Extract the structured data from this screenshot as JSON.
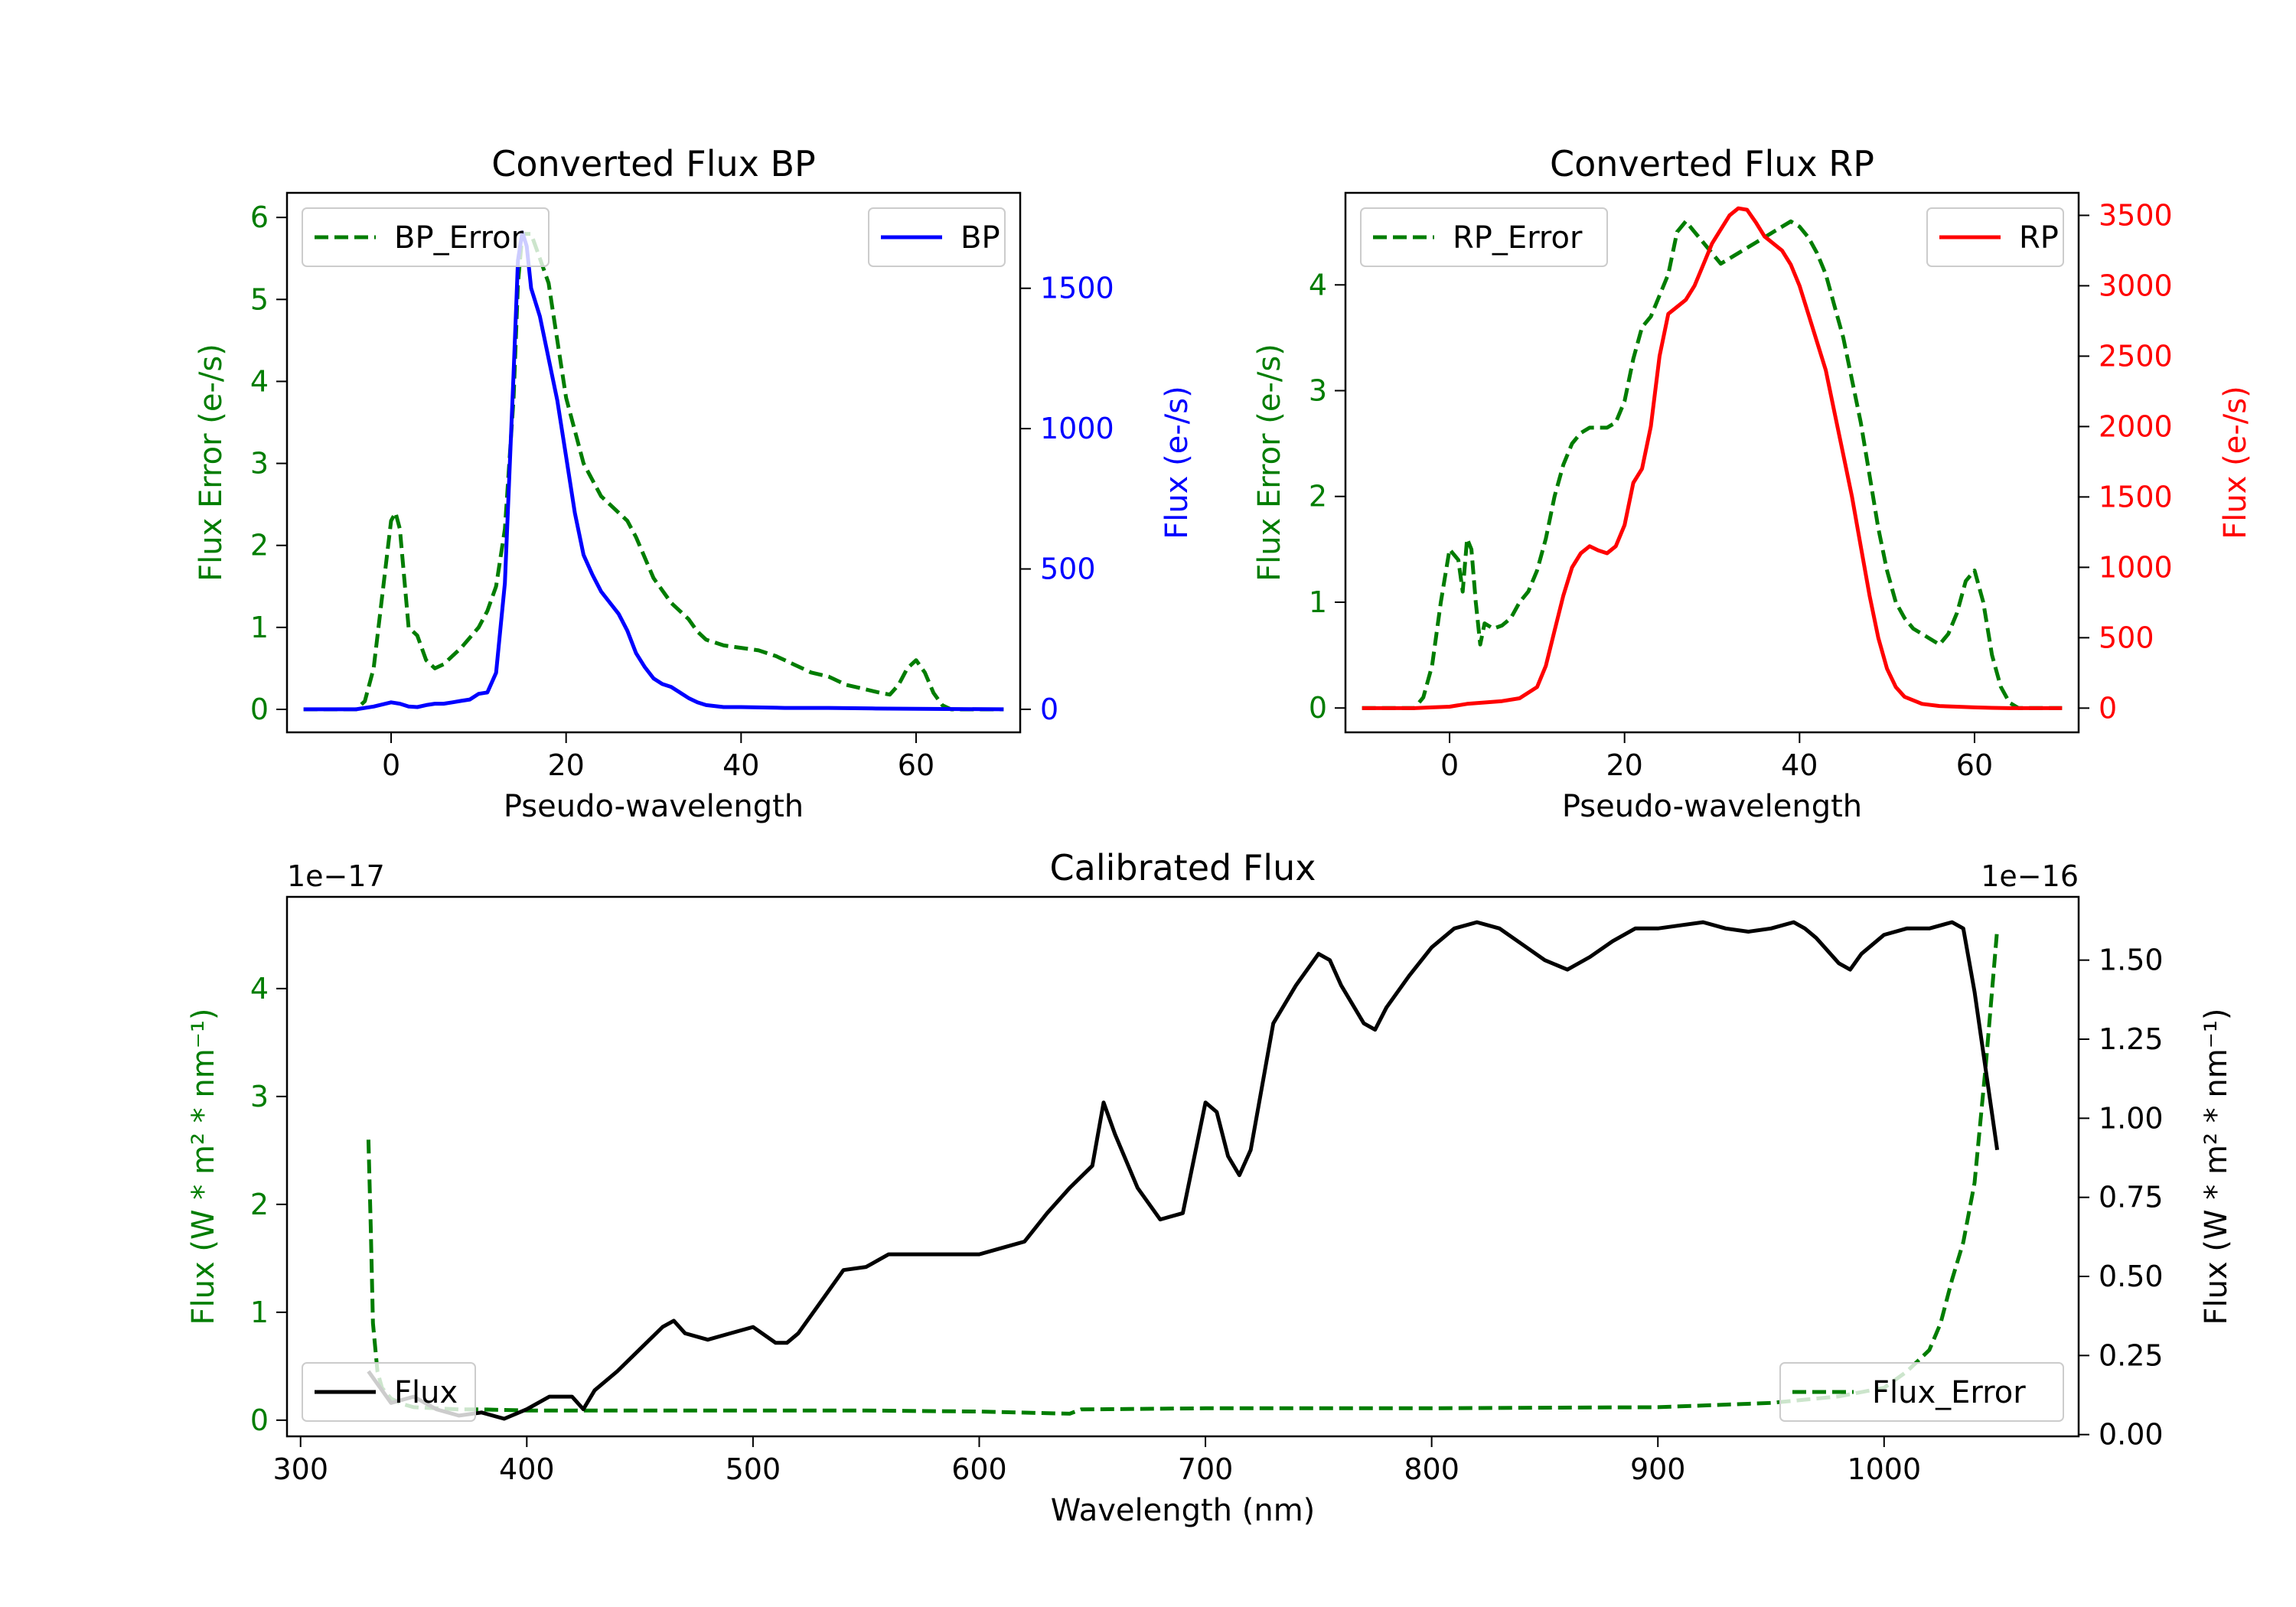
{
  "colors": {
    "green": "#007d00",
    "blue": "#0000ff",
    "red": "#ff0000",
    "black": "#000000"
  },
  "chart_data": [
    {
      "type": "line",
      "title": "Converted Flux BP",
      "xlabel": "Pseudo-wavelength",
      "ylabel_left": "Flux Error (e-/s)",
      "ylabel_right": "Flux (e-/s)",
      "xlim": [
        -11.9,
        71.9
      ],
      "ylim_left": [
        -0.28,
        6.3
      ],
      "ylim_right": [
        -82,
        1840
      ],
      "xticks": [
        0,
        20,
        40,
        60
      ],
      "yticks_left": [
        0,
        1,
        2,
        3,
        4,
        5,
        6
      ],
      "yticks_right": [
        0,
        500,
        1000,
        1500
      ],
      "legend_left": "BP_Error",
      "legend_right": "BP",
      "series": [
        {
          "name": "BP_Error",
          "axis": "left",
          "color": "#007d00",
          "dash": true,
          "x": [
            -10,
            -4,
            -3,
            -2,
            -1,
            0,
            0.5,
            1,
            2,
            3,
            4,
            5,
            6,
            8,
            10,
            11,
            12,
            13,
            14,
            14.5,
            15,
            16,
            17,
            18,
            19,
            20,
            22,
            24,
            26,
            27,
            28,
            30,
            32,
            34,
            35,
            36,
            38,
            40,
            42,
            44,
            46,
            48,
            50,
            52,
            54,
            56,
            57,
            58,
            59,
            60,
            61,
            62,
            63,
            64,
            65,
            66,
            70
          ],
          "values": [
            0,
            0,
            0.1,
            0.5,
            1.4,
            2.3,
            2.4,
            2.2,
            1.0,
            0.9,
            0.6,
            0.5,
            0.55,
            0.75,
            1.0,
            1.2,
            1.5,
            2.2,
            3.8,
            5.2,
            5.8,
            5.8,
            5.5,
            5.2,
            4.5,
            3.8,
            3.0,
            2.6,
            2.4,
            2.3,
            2.1,
            1.6,
            1.3,
            1.1,
            0.95,
            0.85,
            0.78,
            0.75,
            0.72,
            0.65,
            0.55,
            0.45,
            0.4,
            0.3,
            0.25,
            0.2,
            0.18,
            0.3,
            0.5,
            0.6,
            0.45,
            0.2,
            0.05,
            0,
            0,
            0,
            0
          ]
        },
        {
          "name": "BP",
          "axis": "right",
          "color": "#0000ff",
          "dash": false,
          "x": [
            -10,
            -4,
            -2,
            0,
            1,
            2,
            3,
            4,
            5,
            6,
            7,
            8,
            9,
            10,
            11,
            12,
            13,
            14,
            14.5,
            15,
            15.5,
            16,
            17,
            18,
            19,
            20,
            21,
            22,
            23,
            24,
            25,
            26,
            27,
            28,
            29,
            30,
            31,
            32,
            33,
            34,
            35,
            36,
            38,
            40,
            45,
            50,
            55,
            60,
            65,
            70
          ],
          "values": [
            0,
            0,
            10,
            25,
            20,
            10,
            8,
            15,
            20,
            20,
            25,
            30,
            35,
            55,
            60,
            130,
            450,
            1200,
            1600,
            1700,
            1650,
            1500,
            1400,
            1250,
            1100,
            900,
            700,
            550,
            480,
            420,
            380,
            340,
            280,
            200,
            150,
            110,
            90,
            80,
            60,
            40,
            25,
            15,
            8,
            8,
            5,
            5,
            3,
            2,
            1,
            0
          ]
        }
      ]
    },
    {
      "type": "line",
      "title": "Converted Flux RP",
      "xlabel": "Pseudo-wavelength",
      "ylabel_left": "Flux Error (e-/s)",
      "ylabel_right": "Flux (e-/s)",
      "xlim": [
        -11.9,
        71.9
      ],
      "ylim_left": [
        -0.23,
        4.87
      ],
      "ylim_right": [
        -172,
        3660
      ],
      "xticks": [
        0,
        20,
        40,
        60
      ],
      "yticks_left": [
        0,
        1,
        2,
        3,
        4
      ],
      "yticks_right": [
        0,
        500,
        1000,
        1500,
        2000,
        2500,
        3000,
        3500
      ],
      "legend_left": "RP_Error",
      "legend_right": "RP",
      "series": [
        {
          "name": "RP_Error",
          "axis": "left",
          "color": "#007d00",
          "dash": true,
          "x": [
            -10,
            -4,
            -3,
            -2,
            -1,
            0,
            1,
            1.5,
            2,
            2.5,
            3,
            3.5,
            4,
            5,
            6,
            7,
            8,
            9,
            10,
            11,
            12,
            13,
            14,
            15,
            16,
            17,
            18,
            19,
            20,
            21,
            22,
            23,
            24,
            25,
            26,
            27,
            28,
            29,
            30,
            31,
            32,
            33,
            34,
            35,
            36,
            37,
            38,
            39,
            40,
            41,
            42,
            43,
            44,
            45,
            46,
            47,
            48,
            49,
            50,
            51,
            52,
            53,
            54,
            55,
            56,
            57,
            58,
            59,
            60,
            61,
            62,
            63,
            64,
            65,
            70
          ],
          "values": [
            0,
            0,
            0.1,
            0.4,
            1.0,
            1.5,
            1.4,
            1.1,
            1.6,
            1.5,
            1.0,
            0.6,
            0.8,
            0.75,
            0.78,
            0.85,
            1.0,
            1.1,
            1.3,
            1.6,
            2.0,
            2.3,
            2.5,
            2.6,
            2.65,
            2.65,
            2.65,
            2.7,
            2.9,
            3.3,
            3.6,
            3.7,
            3.9,
            4.1,
            4.5,
            4.6,
            4.5,
            4.4,
            4.3,
            4.2,
            4.25,
            4.3,
            4.35,
            4.4,
            4.45,
            4.5,
            4.55,
            4.6,
            4.55,
            4.45,
            4.3,
            4.1,
            3.8,
            3.5,
            3.1,
            2.7,
            2.2,
            1.7,
            1.3,
            1.0,
            0.85,
            0.75,
            0.7,
            0.65,
            0.6,
            0.7,
            0.9,
            1.2,
            1.3,
            1.0,
            0.5,
            0.2,
            0.05,
            0,
            0
          ]
        },
        {
          "name": "RP",
          "axis": "right",
          "color": "#ff0000",
          "dash": false,
          "x": [
            -10,
            -4,
            -2,
            0,
            2,
            4,
            6,
            8,
            10,
            11,
            12,
            13,
            14,
            15,
            16,
            17,
            18,
            19,
            20,
            21,
            22,
            23,
            24,
            25,
            26,
            27,
            28,
            29,
            30,
            31,
            32,
            33,
            34,
            35,
            36,
            37,
            38,
            39,
            40,
            41,
            42,
            43,
            44,
            45,
            46,
            47,
            48,
            49,
            50,
            51,
            52,
            54,
            56,
            58,
            60,
            62,
            64,
            70
          ],
          "values": [
            0,
            0,
            5,
            10,
            30,
            40,
            50,
            70,
            150,
            300,
            550,
            800,
            1000,
            1100,
            1150,
            1120,
            1100,
            1150,
            1300,
            1600,
            1700,
            2000,
            2500,
            2800,
            2850,
            2900,
            3000,
            3150,
            3300,
            3400,
            3500,
            3550,
            3540,
            3450,
            3350,
            3300,
            3250,
            3150,
            3000,
            2800,
            2600,
            2400,
            2100,
            1800,
            1500,
            1150,
            800,
            500,
            280,
            150,
            80,
            30,
            15,
            10,
            5,
            2,
            0,
            0
          ]
        }
      ]
    },
    {
      "type": "line",
      "title": "Calibrated Flux",
      "xlabel": "Wavelength (nm)",
      "ylabel_left": "Flux (W * m² * nm⁻¹)",
      "ylabel_right": "Flux (W * m² * nm⁻¹)",
      "xlim": [
        294,
        1086
      ],
      "ylim_left": [
        -0.15,
        4.85
      ],
      "ylim_right": [
        -0.0056,
        1.7
      ],
      "xticks": [
        300,
        400,
        500,
        600,
        700,
        800,
        900,
        1000
      ],
      "yticks_left": [
        0,
        1,
        2,
        3,
        4
      ],
      "yticks_right": [
        "0.00",
        "0.25",
        "0.50",
        "0.75",
        "1.00",
        "1.25",
        "1.50"
      ],
      "offset_left": "1e−17",
      "offset_right": "1e−16",
      "legend_left": "Flux",
      "legend_right": "Flux_Error",
      "series": [
        {
          "name": "Flux_Error",
          "axis": "left",
          "color": "#007d00",
          "dash": true,
          "x": [
            330,
            331,
            332,
            334,
            336,
            340,
            345,
            350,
            360,
            370,
            380,
            400,
            450,
            500,
            550,
            600,
            640,
            645,
            700,
            800,
            900,
            950,
            980,
            1000,
            1010,
            1020,
            1025,
            1030,
            1035,
            1040,
            1045,
            1050
          ],
          "values": [
            2.6,
            1.8,
            0.9,
            0.45,
            0.3,
            0.2,
            0.15,
            0.12,
            0.11,
            0.1,
            0.1,
            0.09,
            0.09,
            0.09,
            0.09,
            0.08,
            0.06,
            0.1,
            0.11,
            0.11,
            0.12,
            0.16,
            0.22,
            0.3,
            0.45,
            0.65,
            0.9,
            1.3,
            1.65,
            2.2,
            3.3,
            4.55
          ]
        },
        {
          "name": "Flux",
          "axis": "right",
          "color": "#000000",
          "dash": false,
          "x": [
            330,
            335,
            340,
            350,
            360,
            370,
            380,
            390,
            400,
            410,
            420,
            425,
            430,
            440,
            450,
            460,
            465,
            470,
            480,
            490,
            500,
            510,
            515,
            520,
            530,
            540,
            550,
            560,
            580,
            600,
            610,
            620,
            630,
            640,
            650,
            655,
            660,
            670,
            680,
            690,
            700,
            705,
            710,
            715,
            720,
            730,
            740,
            750,
            755,
            760,
            770,
            775,
            780,
            790,
            800,
            810,
            820,
            830,
            840,
            850,
            860,
            870,
            880,
            890,
            900,
            910,
            920,
            930,
            940,
            950,
            960,
            965,
            970,
            980,
            985,
            990,
            1000,
            1010,
            1020,
            1030,
            1035,
            1040,
            1045,
            1050
          ],
          "values": [
            0.2,
            0.15,
            0.1,
            0.12,
            0.08,
            0.06,
            0.07,
            0.05,
            0.08,
            0.12,
            0.12,
            0.08,
            0.14,
            0.2,
            0.27,
            0.34,
            0.36,
            0.32,
            0.3,
            0.32,
            0.34,
            0.29,
            0.29,
            0.32,
            0.42,
            0.52,
            0.53,
            0.57,
            0.57,
            0.57,
            0.59,
            0.61,
            0.7,
            0.78,
            0.85,
            1.05,
            0.95,
            0.78,
            0.68,
            0.7,
            1.05,
            1.02,
            0.88,
            0.82,
            0.9,
            1.3,
            1.42,
            1.52,
            1.5,
            1.42,
            1.3,
            1.28,
            1.35,
            1.45,
            1.54,
            1.6,
            1.62,
            1.6,
            1.55,
            1.5,
            1.47,
            1.51,
            1.56,
            1.6,
            1.6,
            1.61,
            1.62,
            1.6,
            1.59,
            1.6,
            1.62,
            1.6,
            1.57,
            1.49,
            1.47,
            1.52,
            1.58,
            1.6,
            1.6,
            1.62,
            1.6,
            1.4,
            1.15,
            0.9
          ]
        }
      ]
    }
  ]
}
